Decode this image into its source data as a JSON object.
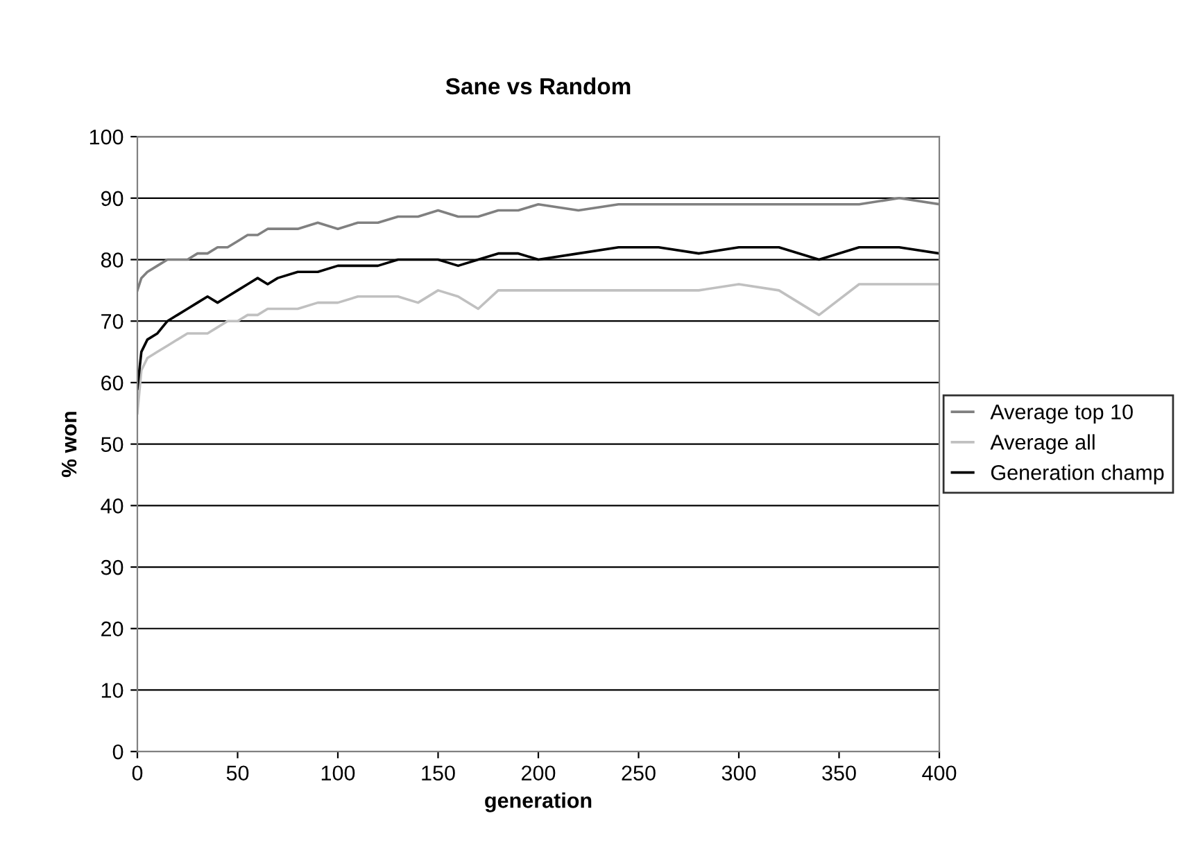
{
  "chart_data": {
    "type": "line",
    "title": "Sane vs Random",
    "xlabel": "generation",
    "ylabel": "% won",
    "x": [
      0,
      2,
      5,
      10,
      15,
      20,
      25,
      30,
      35,
      40,
      45,
      50,
      55,
      60,
      65,
      70,
      80,
      90,
      100,
      110,
      120,
      130,
      140,
      150,
      160,
      170,
      180,
      190,
      200,
      220,
      240,
      260,
      280,
      300,
      320,
      340,
      360,
      380,
      400
    ],
    "series": [
      {
        "name": "Average top 10",
        "color": "#808080",
        "values": [
          75,
          77,
          78,
          79,
          80,
          80,
          80,
          81,
          81,
          82,
          82,
          83,
          84,
          84,
          85,
          85,
          85,
          86,
          85,
          86,
          86,
          87,
          87,
          88,
          87,
          87,
          88,
          88,
          89,
          88,
          89,
          89,
          89,
          89,
          89,
          89,
          89,
          90,
          89
        ]
      },
      {
        "name": "Average all",
        "color": "#c0c0c0",
        "values": [
          55,
          62,
          64,
          65,
          66,
          67,
          68,
          68,
          68,
          69,
          70,
          70,
          71,
          71,
          72,
          72,
          72,
          73,
          73,
          74,
          74,
          74,
          73,
          75,
          74,
          72,
          75,
          75,
          75,
          75,
          75,
          75,
          75,
          76,
          75,
          71,
          76,
          76,
          76
        ]
      },
      {
        "name": "Generation champ",
        "color": "#000000",
        "values": [
          59,
          65,
          67,
          68,
          70,
          71,
          72,
          73,
          74,
          73,
          74,
          75,
          76,
          77,
          76,
          77,
          78,
          78,
          79,
          79,
          79,
          80,
          80,
          80,
          79,
          80,
          81,
          81,
          80,
          81,
          82,
          82,
          81,
          82,
          82,
          80,
          82,
          82,
          81
        ]
      }
    ],
    "xlim": [
      0,
      400
    ],
    "xticks": [
      0,
      50,
      100,
      150,
      200,
      250,
      300,
      350,
      400
    ],
    "ylim": [
      0,
      100
    ],
    "yticks": [
      0,
      10,
      20,
      30,
      40,
      50,
      60,
      70,
      80,
      90,
      100
    ],
    "grid": "y",
    "legend": "right",
    "marker": "none",
    "line_style": "solid"
  }
}
